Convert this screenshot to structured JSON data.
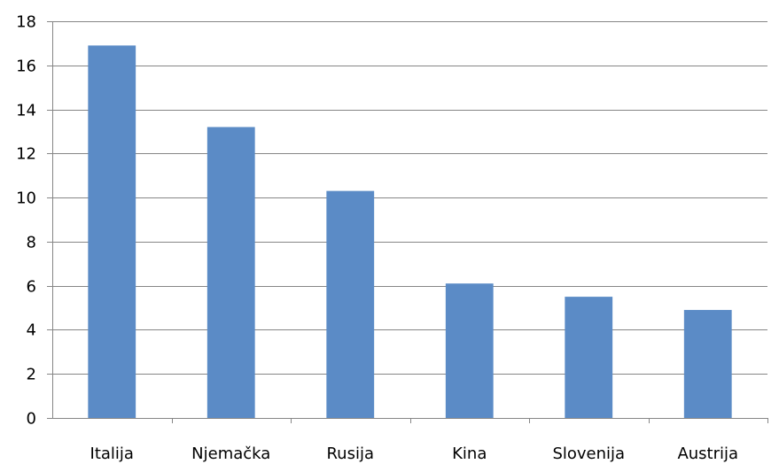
{
  "chart_data": {
    "type": "bar",
    "title": "",
    "xlabel": "",
    "ylabel": "",
    "categories": [
      "Italija",
      "Njemačka",
      "Rusija",
      "Kina",
      "Slovenija",
      "Austrija"
    ],
    "values": [
      16.9,
      13.2,
      10.3,
      6.1,
      5.5,
      4.9
    ],
    "ylim": [
      0,
      18
    ],
    "yticks": [
      "0",
      "2",
      "4",
      "6",
      "8",
      "10",
      "12",
      "14",
      "16",
      "18"
    ],
    "grid": "horizontal",
    "legend": "none",
    "colors": {
      "bar": "#5B8BC6",
      "grid": "#868686",
      "axis": "#868686"
    }
  }
}
